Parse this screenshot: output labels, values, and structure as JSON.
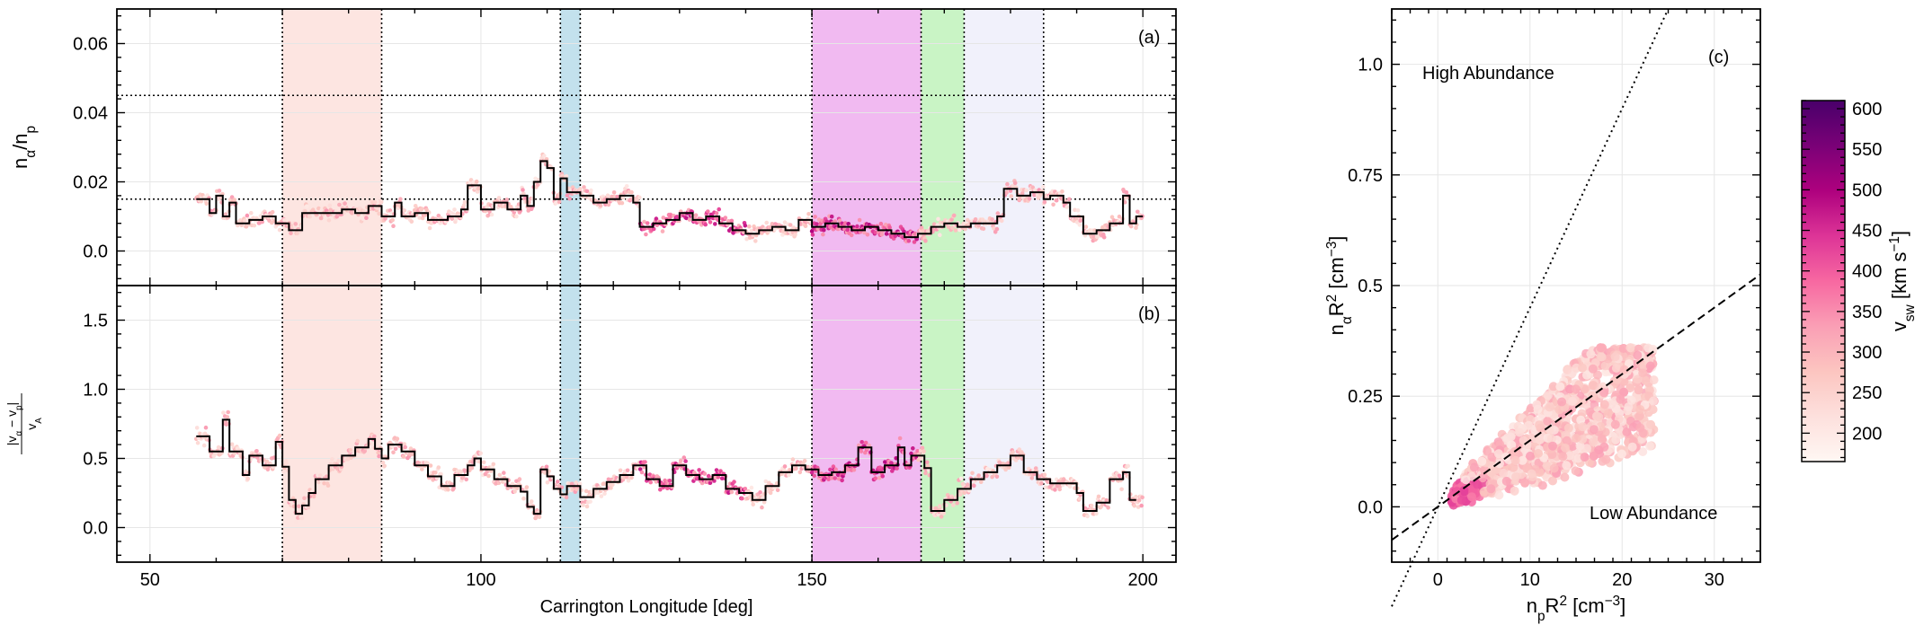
{
  "chart_data": [
    {
      "type": "scatter",
      "panel_label": "(a)",
      "ylabel_html": "n<tspan baseline-shift='sub' font-size='70%'>α</tspan>/n<tspan baseline-shift='sub' font-size='70%'>p</tspan>",
      "xlim": [
        45,
        205
      ],
      "ylim": [
        -0.01,
        0.07
      ],
      "yticks": [
        0.0,
        0.02,
        0.04,
        0.06
      ],
      "ytick_labels": [
        "0.0",
        "0.02",
        "0.04",
        "0.06"
      ],
      "hlines": [
        0.015,
        0.045
      ],
      "binned_series": {
        "name": "",
        "points": [
          [
            57,
            0.015
          ],
          [
            59,
            0.011
          ],
          [
            60,
            0.016
          ],
          [
            61,
            0.01
          ],
          [
            62,
            0.014
          ],
          [
            63,
            0.008
          ],
          [
            65,
            0.009
          ],
          [
            67,
            0.01
          ],
          [
            69,
            0.008
          ],
          [
            71,
            0.006
          ],
          [
            73,
            0.011
          ],
          [
            76,
            0.011
          ],
          [
            79,
            0.012
          ],
          [
            81,
            0.011
          ],
          [
            83,
            0.013
          ],
          [
            85,
            0.01
          ],
          [
            87,
            0.014
          ],
          [
            88,
            0.01
          ],
          [
            90,
            0.011
          ],
          [
            92,
            0.009
          ],
          [
            95,
            0.01
          ],
          [
            97,
            0.012
          ],
          [
            98,
            0.019
          ],
          [
            100,
            0.012
          ],
          [
            102,
            0.014
          ],
          [
            104,
            0.012
          ],
          [
            106,
            0.016
          ],
          [
            107,
            0.013
          ],
          [
            108,
            0.02
          ],
          [
            109,
            0.026
          ],
          [
            110,
            0.024
          ],
          [
            111,
            0.015
          ],
          [
            112,
            0.021
          ],
          [
            113,
            0.017
          ],
          [
            115,
            0.016
          ],
          [
            117,
            0.014
          ],
          [
            119,
            0.015
          ],
          [
            121,
            0.016
          ],
          [
            123,
            0.014
          ],
          [
            124,
            0.007
          ],
          [
            126,
            0.008
          ],
          [
            128,
            0.009
          ],
          [
            130,
            0.011
          ],
          [
            132,
            0.009
          ],
          [
            134,
            0.01
          ],
          [
            136,
            0.008
          ],
          [
            138,
            0.006
          ],
          [
            140,
            0.005
          ],
          [
            142,
            0.006
          ],
          [
            144,
            0.007
          ],
          [
            146,
            0.006
          ],
          [
            148,
            0.009
          ],
          [
            150,
            0.007
          ],
          [
            152,
            0.008
          ],
          [
            154,
            0.007
          ],
          [
            156,
            0.006
          ],
          [
            158,
            0.007
          ],
          [
            160,
            0.006
          ],
          [
            162,
            0.005
          ],
          [
            164,
            0.004
          ],
          [
            166,
            0.005
          ],
          [
            168,
            0.007
          ],
          [
            170,
            0.008
          ],
          [
            172,
            0.007
          ],
          [
            174,
            0.008
          ],
          [
            176,
            0.008
          ],
          [
            178,
            0.01
          ],
          [
            179,
            0.018
          ],
          [
            181,
            0.016
          ],
          [
            183,
            0.017
          ],
          [
            185,
            0.015
          ],
          [
            186,
            0.016
          ],
          [
            188,
            0.014
          ],
          [
            189,
            0.01
          ],
          [
            191,
            0.005
          ],
          [
            193,
            0.006
          ],
          [
            195,
            0.008
          ],
          [
            197,
            0.016
          ],
          [
            198,
            0.008
          ],
          [
            199,
            0.01
          ]
        ]
      }
    },
    {
      "type": "scatter",
      "panel_label": "(b)",
      "xlabel": "Carrington Longitude [deg]",
      "ylabel_html": "|v<tspan baseline-shift='sub' font-size='70%'>α</tspan> − v<tspan baseline-shift='sub' font-size='70%'>p</tspan>|",
      "ylabel_den_html": "v<tspan baseline-shift='sub' font-size='70%'>A</tspan>",
      "xlim": [
        45,
        205
      ],
      "ylim": [
        -0.25,
        1.75
      ],
      "xticks": [
        50,
        100,
        150,
        200
      ],
      "xtick_labels": [
        "50",
        "100",
        "150",
        "200"
      ],
      "yticks": [
        0.0,
        0.5,
        1.0,
        1.5
      ],
      "ytick_labels": [
        "0.0",
        "0.5",
        "1.0",
        "1.5"
      ],
      "binned_series": {
        "name": "",
        "points": [
          [
            57,
            0.66
          ],
          [
            59,
            0.55
          ],
          [
            61,
            0.78
          ],
          [
            62,
            0.55
          ],
          [
            64,
            0.38
          ],
          [
            65,
            0.52
          ],
          [
            67,
            0.45
          ],
          [
            69,
            0.62
          ],
          [
            70,
            0.44
          ],
          [
            71,
            0.2
          ],
          [
            72,
            0.1
          ],
          [
            73,
            0.16
          ],
          [
            74,
            0.25
          ],
          [
            75,
            0.35
          ],
          [
            77,
            0.45
          ],
          [
            79,
            0.52
          ],
          [
            81,
            0.58
          ],
          [
            83,
            0.64
          ],
          [
            84,
            0.57
          ],
          [
            85,
            0.5
          ],
          [
            86,
            0.6
          ],
          [
            88,
            0.55
          ],
          [
            90,
            0.45
          ],
          [
            92,
            0.37
          ],
          [
            94,
            0.3
          ],
          [
            96,
            0.38
          ],
          [
            98,
            0.45
          ],
          [
            99,
            0.5
          ],
          [
            100,
            0.42
          ],
          [
            102,
            0.35
          ],
          [
            104,
            0.3
          ],
          [
            106,
            0.26
          ],
          [
            107,
            0.15
          ],
          [
            108,
            0.1
          ],
          [
            109,
            0.42
          ],
          [
            110,
            0.37
          ],
          [
            111,
            0.28
          ],
          [
            112,
            0.24
          ],
          [
            113,
            0.3
          ],
          [
            115,
            0.22
          ],
          [
            117,
            0.28
          ],
          [
            119,
            0.33
          ],
          [
            121,
            0.38
          ],
          [
            123,
            0.45
          ],
          [
            125,
            0.35
          ],
          [
            127,
            0.3
          ],
          [
            129,
            0.45
          ],
          [
            131,
            0.38
          ],
          [
            133,
            0.35
          ],
          [
            135,
            0.38
          ],
          [
            137,
            0.28
          ],
          [
            139,
            0.25
          ],
          [
            141,
            0.2
          ],
          [
            143,
            0.3
          ],
          [
            145,
            0.4
          ],
          [
            147,
            0.45
          ],
          [
            149,
            0.42
          ],
          [
            151,
            0.38
          ],
          [
            153,
            0.4
          ],
          [
            155,
            0.45
          ],
          [
            157,
            0.58
          ],
          [
            159,
            0.4
          ],
          [
            161,
            0.45
          ],
          [
            163,
            0.58
          ],
          [
            164,
            0.45
          ],
          [
            165,
            0.52
          ],
          [
            167,
            0.43
          ],
          [
            168,
            0.12
          ],
          [
            170,
            0.2
          ],
          [
            172,
            0.28
          ],
          [
            174,
            0.35
          ],
          [
            176,
            0.4
          ],
          [
            178,
            0.45
          ],
          [
            180,
            0.52
          ],
          [
            182,
            0.4
          ],
          [
            184,
            0.35
          ],
          [
            186,
            0.32
          ],
          [
            188,
            0.32
          ],
          [
            190,
            0.25
          ],
          [
            191,
            0.12
          ],
          [
            193,
            0.18
          ],
          [
            195,
            0.35
          ],
          [
            197,
            0.4
          ],
          [
            198,
            0.2
          ]
        ]
      }
    },
    {
      "type": "scatter",
      "panel_label": "(c)",
      "xlabel_html": "n<tspan baseline-shift='sub' font-size='70%'>p</tspan>R<tspan baseline-shift='super' font-size='70%'>2</tspan> [cm<tspan baseline-shift='super' font-size='70%'>−3</tspan>]",
      "ylabel_html": "n<tspan baseline-shift='sub' font-size='70%'>α</tspan>R<tspan baseline-shift='super' font-size='70%'>2</tspan> [cm<tspan baseline-shift='super' font-size='70%'>−3</tspan>]",
      "xlim": [
        -5,
        35
      ],
      "ylim": [
        -0.125,
        1.125
      ],
      "xticks": [
        0,
        10,
        20,
        30
      ],
      "xtick_labels": [
        "0",
        "10",
        "20",
        "30"
      ],
      "yticks": [
        0.0,
        0.25,
        0.5,
        0.75,
        1.0
      ],
      "ytick_labels": [
        "0.0",
        "0.25",
        "0.5",
        "0.75",
        "1.0"
      ],
      "reference_lines": [
        {
          "style": "dotted",
          "slope": 0.045,
          "intercept": 0
        },
        {
          "style": "dashed",
          "slope": 0.015,
          "intercept": 0
        }
      ],
      "annotations": [
        "High Abundance",
        "Low Abundance"
      ],
      "colorbar": {
        "label_html": "v<tspan baseline-shift='sub' font-size='70%'>sw</tspan> [km s<tspan baseline-shift='super' font-size='70%'>−1</tspan>]",
        "ticks": [
          200,
          250,
          300,
          350,
          400,
          450,
          500,
          550,
          600
        ],
        "tick_labels": [
          "200",
          "250",
          "300",
          "350",
          "400",
          "450",
          "500",
          "550",
          "600"
        ],
        "range": [
          165,
          610
        ],
        "colormap": [
          "#fff7f3",
          "#fde0dd",
          "#fcc5c0",
          "#fa9fb5",
          "#f768a1",
          "#dd3497",
          "#ae017e",
          "#7a0177",
          "#49006a"
        ]
      }
    }
  ],
  "shaded_intervals": [
    {
      "x0": 70,
      "x1": 85,
      "color": "#fde0dc",
      "dotted_edges": true
    },
    {
      "x0": 112,
      "x1": 115,
      "color": "#b8dcea",
      "dotted_edges": true
    },
    {
      "x0": 150,
      "x1": 166.5,
      "color": "#efaeef",
      "dotted_edges": true
    },
    {
      "x0": 166.5,
      "x1": 173,
      "color": "#bff2bb",
      "dotted_edges": false
    },
    {
      "x0": 173,
      "x1": 185,
      "color": "#efeffa",
      "dotted_edges": true
    }
  ]
}
